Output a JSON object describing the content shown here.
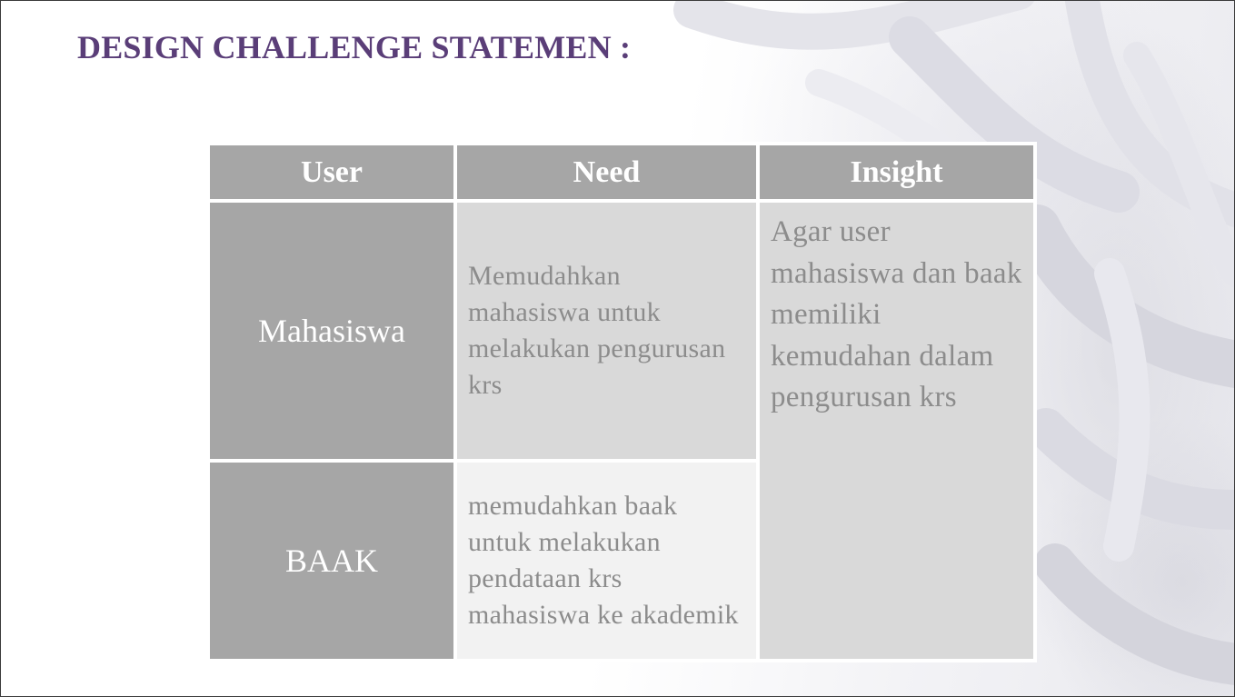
{
  "slide": {
    "title": "DESIGN CHALLENGE STATEMEN :"
  },
  "table": {
    "headers": [
      "User",
      "Need",
      "Insight"
    ],
    "rows": [
      {
        "user": "Mahasiswa",
        "need": "Memudahkan mahasiswa untuk melakukan pengurusan krs"
      },
      {
        "user": "BAAK",
        "need": "memudahkan baak untuk melakukan pendataan krs mahasiswa ke akademik"
      }
    ],
    "insight": "Agar user mahasiswa dan baak memiliki kemudahan dalam pengurusan krs"
  },
  "colors": {
    "title": "#5a3e78",
    "header_bg": "#a6a6a6",
    "user_cell_bg": "#a6a6a6",
    "need_row1_bg": "#d9d9d9",
    "need_row2_bg": "#f2f2f2",
    "insight_bg": "#d9d9d9",
    "body_text": "#8c8c8c"
  }
}
